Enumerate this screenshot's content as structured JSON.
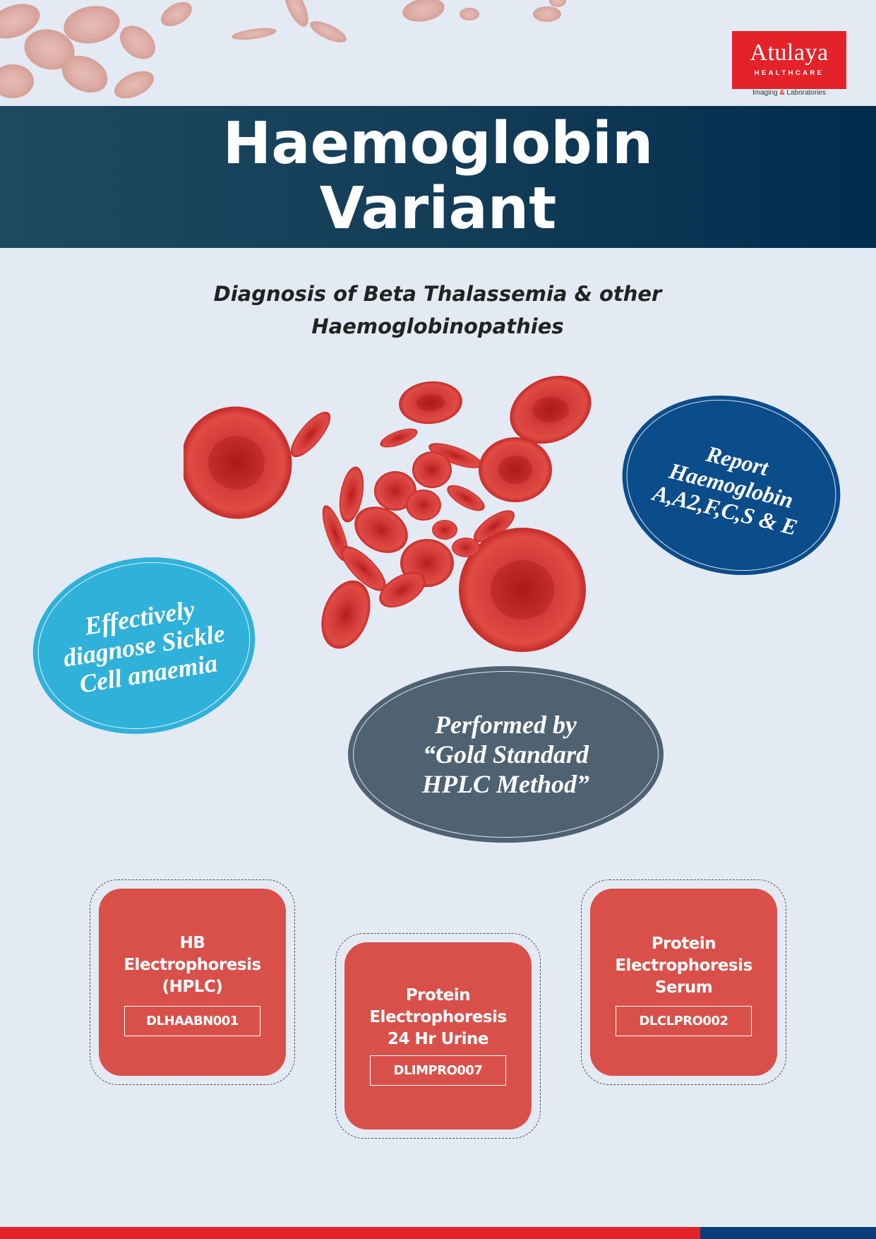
{
  "brand": {
    "name": "Atulaya",
    "division": "HEALTHCARE",
    "tagline_pre": "Imaging ",
    "tagline_amp": "&",
    "tagline_post": " Laboratories",
    "red": "#e42229",
    "navy": "#0b3d7a"
  },
  "header": {
    "title_line1": "Haemoglobin",
    "title_line2": "Variant"
  },
  "subtitle": {
    "line1": "Diagnosis of Beta Thalassemia & other",
    "line2": "Haemoglobinopathies"
  },
  "bubbles": {
    "report": {
      "line1": "Report",
      "line2": "Haemoglobin",
      "line3": "A,A2,F,C,S & E",
      "color": "#0b4c8a"
    },
    "sickle": {
      "line1": "Effectively",
      "line2": "diagnose Sickle",
      "line3": "Cell anaemia",
      "color": "#2fb1d9"
    },
    "hplc": {
      "line1": "Performed by",
      "line2": "“Gold Standard",
      "line3": "HPLC Method”",
      "color": "#4e6272"
    }
  },
  "tests": [
    {
      "line1": "HB",
      "line2": "Electrophoresis",
      "line3": "(HPLC)",
      "code": "DLHAABN001"
    },
    {
      "line1": "Protein",
      "line2": "Electrophoresis",
      "line3": "24 Hr Urine",
      "code": "DLIMPRO007"
    },
    {
      "line1": "Protein",
      "line2": "Electrophoresis",
      "line3": "Serum",
      "code": "DLCLPRO002"
    }
  ]
}
